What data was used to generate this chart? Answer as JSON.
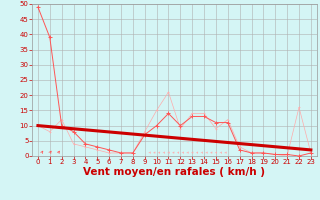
{
  "xlabel": "Vent moyen/en rafales ( km/h )",
  "bg_color": "#d4f5f5",
  "grid_color": "#b0b0b0",
  "xlim": [
    -0.5,
    23.5
  ],
  "ylim": [
    0,
    50
  ],
  "yticks": [
    0,
    5,
    10,
    15,
    20,
    25,
    30,
    35,
    40,
    45,
    50
  ],
  "xticks": [
    0,
    1,
    2,
    3,
    4,
    5,
    6,
    7,
    8,
    9,
    10,
    11,
    12,
    13,
    14,
    15,
    16,
    17,
    18,
    19,
    20,
    21,
    22,
    23
  ],
  "line1_x": [
    0,
    1,
    2,
    3,
    4,
    5,
    6,
    7,
    8,
    9,
    10,
    11,
    12,
    13,
    14,
    15,
    16,
    17,
    18,
    19,
    20,
    21,
    22,
    23
  ],
  "line1_y": [
    49,
    39,
    10,
    8,
    4,
    3,
    2,
    1,
    1,
    7,
    10,
    14,
    10,
    13,
    13,
    11,
    11,
    2,
    1,
    1,
    0.5,
    0.5,
    0,
    1
  ],
  "line1_color": "#ff5555",
  "line2_x": [
    0,
    1,
    2,
    3,
    4,
    5,
    6,
    7,
    8,
    9,
    10,
    11,
    12,
    13,
    14,
    15,
    16,
    17,
    18,
    19,
    20,
    21,
    22,
    23
  ],
  "line2_y": [
    10,
    8,
    12,
    4,
    3,
    2,
    1,
    1,
    1,
    8,
    15,
    21,
    9,
    14,
    14,
    9,
    12,
    3,
    1,
    1,
    0.5,
    0,
    16,
    1
  ],
  "line2_color": "#ffaaaa",
  "trend_x": [
    0,
    23
  ],
  "trend_y": [
    10,
    2
  ],
  "trend_color": "#cc0000",
  "tick_color": "#cc0000",
  "xlabel_color": "#cc0000",
  "tick_fontsize": 5.0,
  "xlabel_fontsize": 7.5
}
